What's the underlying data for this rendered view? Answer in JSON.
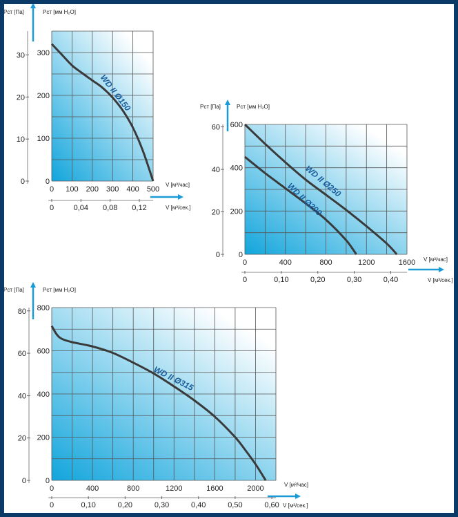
{
  "colors": {
    "frame": "#0b3a66",
    "gradient_start": "#12a5dc",
    "gradient_end": "#ffffff",
    "curve": "#3a3a3a",
    "arrow": "#1a9ad6",
    "curve_label": "#1b5e9c"
  },
  "chart_data": [
    {
      "type": "line",
      "y_label_outer": "Pст [Па]",
      "y_label_inner": "Pст [мм H₂O]",
      "x_label": "V [м³/час]",
      "x2_label": "V [м³/сек.]",
      "xlim": [
        0,
        500
      ],
      "ylim": [
        0,
        350
      ],
      "grid": true,
      "grid_step": {
        "x": 100,
        "y": 50
      },
      "x_ticks": [
        0,
        100,
        200,
        300,
        400,
        500
      ],
      "x_tick_labels": [
        "0",
        "100",
        "200",
        "300",
        "400",
        "500"
      ],
      "y_ticks": [
        0,
        100,
        200,
        300
      ],
      "y_tick_labels": [
        "0",
        "100",
        "200",
        "300"
      ],
      "y2_ticks": [
        0,
        10,
        20,
        30
      ],
      "y2_tick_labels": [
        "0",
        "10",
        "20",
        "30"
      ],
      "x2_ticks": [
        0,
        0.04,
        0.08,
        0.12
      ],
      "x2_tick_labels": [
        "0",
        "0,04",
        "0,08",
        "0,12"
      ],
      "series": [
        {
          "name": "WD II Ø150",
          "x": [
            0,
            50,
            100,
            150,
            200,
            250,
            300,
            350,
            400,
            450,
            500
          ],
          "y": [
            320,
            295,
            270,
            252,
            235,
            218,
            195,
            165,
            125,
            70,
            0
          ]
        }
      ]
    },
    {
      "type": "line",
      "y_label_outer": "Pст [Па]",
      "y_label_inner": "Pст [мм H₂O]",
      "x_label": "V [м³/час]",
      "x2_label": "V [м³/сек.]",
      "xlim": [
        0,
        1600
      ],
      "ylim": [
        0,
        600
      ],
      "grid": true,
      "grid_step": {
        "x": 200,
        "y": 100
      },
      "x_ticks": [
        0,
        400,
        800,
        1200,
        1600
      ],
      "x_tick_labels": [
        "0",
        "400",
        "800",
        "1200",
        "1600"
      ],
      "y_ticks": [
        0,
        200,
        400,
        600
      ],
      "y_tick_labels": [
        "0",
        "200",
        "400",
        "600"
      ],
      "y2_ticks": [
        0,
        20,
        40,
        60
      ],
      "y2_tick_labels": [
        "0",
        "20",
        "40",
        "60"
      ],
      "x2_ticks": [
        0,
        0.1,
        0.2,
        0.3,
        0.4
      ],
      "x2_tick_labels": [
        "0",
        "0,10",
        "0,20",
        "0,30",
        "0,40"
      ],
      "series": [
        {
          "name": "WD II Ø250",
          "x": [
            0,
            200,
            400,
            600,
            800,
            1000,
            1200,
            1400,
            1500
          ],
          "y": [
            600,
            510,
            425,
            345,
            275,
            205,
            130,
            50,
            0
          ]
        },
        {
          "name": "WD II Ø200",
          "x": [
            0,
            200,
            400,
            600,
            800,
            1000,
            1100
          ],
          "y": [
            450,
            375,
            305,
            235,
            160,
            65,
            0
          ]
        }
      ]
    },
    {
      "type": "line",
      "y_label_outer": "Pст [Па]",
      "y_label_inner": "Pст [мм H₂O]",
      "x_label": "V [м³/час]",
      "x2_label": "V [м³/сек.]",
      "xlim": [
        0,
        2200
      ],
      "ylim": [
        0,
        800
      ],
      "grid": true,
      "grid_step": {
        "x": 200,
        "y": 100
      },
      "x_ticks": [
        0,
        400,
        800,
        1200,
        1600,
        2000
      ],
      "x_tick_labels": [
        "0",
        "400",
        "800",
        "1200",
        "1600",
        "2000"
      ],
      "y_ticks": [
        0,
        200,
        400,
        600,
        800
      ],
      "y_tick_labels": [
        "0",
        "200",
        "400",
        "600",
        "800"
      ],
      "y2_ticks": [
        0,
        20,
        40,
        60,
        80
      ],
      "y2_tick_labels": [
        "0",
        "20",
        "40",
        "60",
        "80"
      ],
      "x2_ticks": [
        0,
        0.1,
        0.2,
        0.3,
        0.4,
        0.5,
        0.6
      ],
      "x2_tick_labels": [
        "0",
        "0,10",
        "0,20",
        "0,30",
        "0,40",
        "0,50",
        "0,60"
      ],
      "series": [
        {
          "name": "WD II Ø315",
          "x": [
            0,
            50,
            100,
            200,
            400,
            600,
            800,
            1000,
            1200,
            1400,
            1600,
            1800,
            1900,
            2000,
            2100
          ],
          "y": [
            715,
            675,
            655,
            640,
            620,
            590,
            545,
            495,
            435,
            370,
            295,
            200,
            140,
            75,
            0
          ]
        }
      ]
    }
  ]
}
